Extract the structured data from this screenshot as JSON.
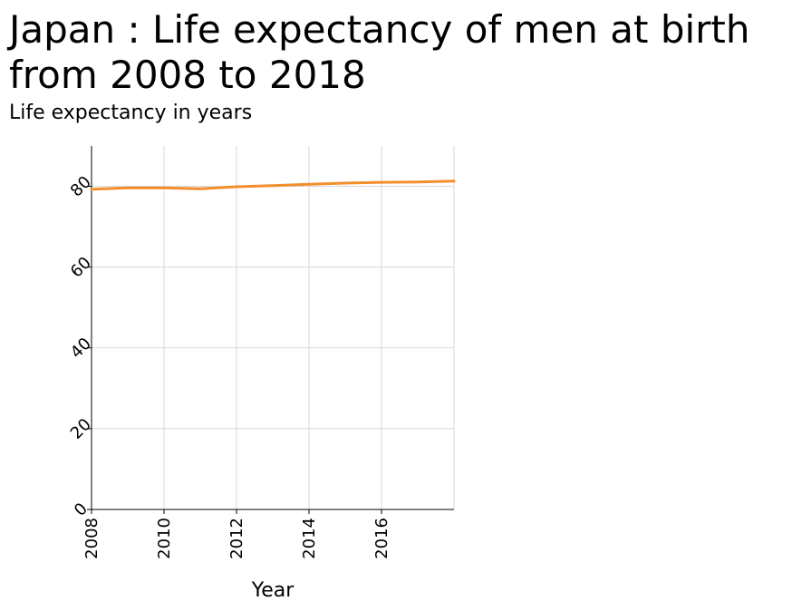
{
  "chart_data": {
    "type": "line",
    "title": "Japan : Life expectancy of men at birth from 2008 to 2018",
    "xlabel": "Year",
    "ylabel": "Life expectancy in years",
    "xlim": [
      2008,
      2018
    ],
    "ylim": [
      0,
      90
    ],
    "x_ticks": [
      2008,
      2010,
      2012,
      2014,
      2016
    ],
    "y_ticks": [
      0,
      20,
      40,
      60,
      80
    ],
    "grid": true,
    "line_color": "#f28e2b",
    "series": [
      {
        "x": [
          2008,
          2009,
          2010,
          2011,
          2012,
          2013,
          2014,
          2015,
          2016,
          2017,
          2018
        ],
        "values": [
          79.3,
          79.6,
          79.6,
          79.4,
          79.9,
          80.2,
          80.5,
          80.8,
          81.0,
          81.1,
          81.3
        ]
      }
    ]
  }
}
